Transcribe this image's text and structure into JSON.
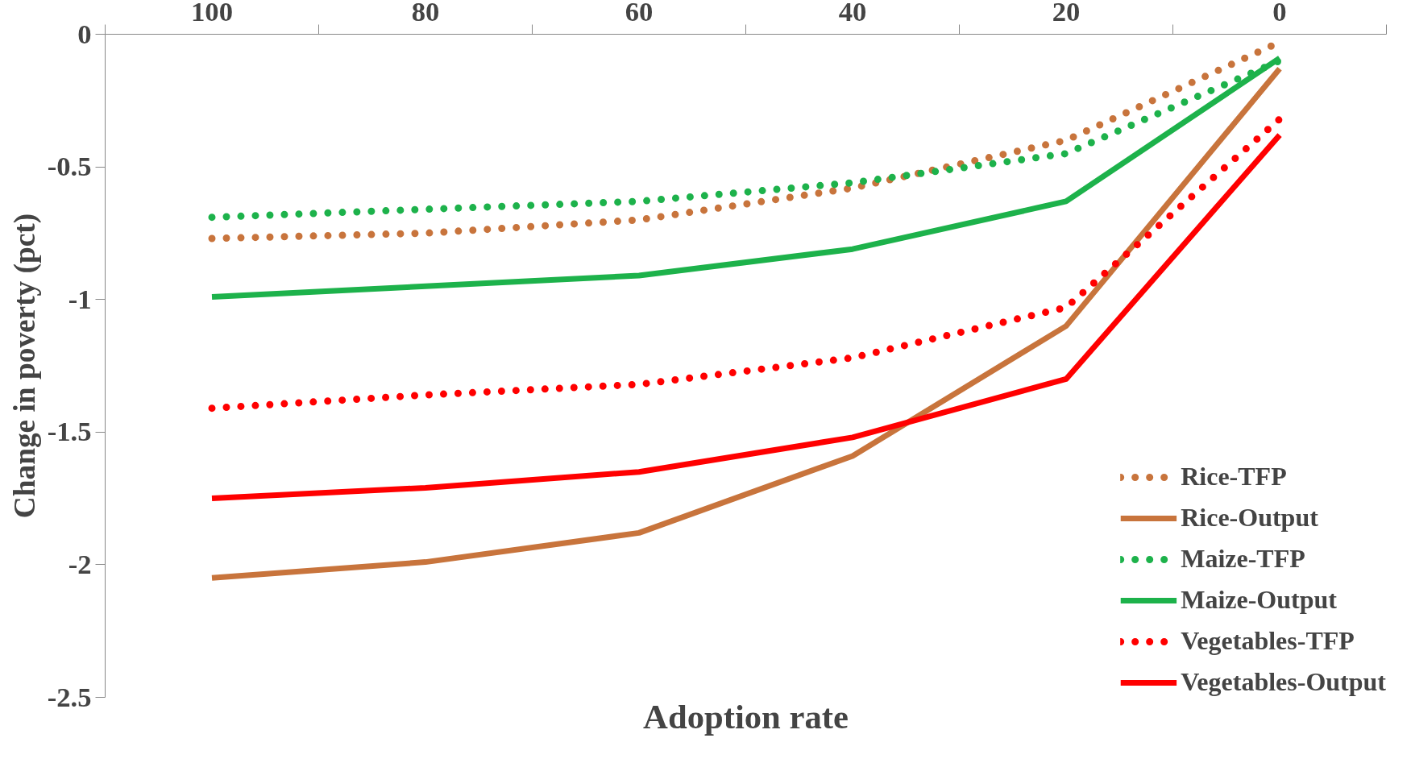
{
  "chart_data": {
    "type": "line",
    "xlabel": "Adoption rate",
    "ylabel": "Change in poverty (pct)",
    "categories": [
      "100",
      "80",
      "60",
      "40",
      "20",
      "0"
    ],
    "ylim": [
      -2.5,
      0
    ],
    "yticks": [
      0,
      -0.5,
      -1,
      -1.5,
      -2,
      -2.5
    ],
    "grid": false,
    "legend": "bottom right",
    "marker": "none",
    "series": [
      {
        "name": "Rice-TFP",
        "color": "#c8743c",
        "line_style": "dotted",
        "values": [
          -0.77,
          -0.75,
          -0.7,
          -0.58,
          -0.4,
          -0.03
        ]
      },
      {
        "name": "Rice-Output",
        "color": "#c8743c",
        "line_style": "solid",
        "values": [
          -2.05,
          -1.99,
          -1.88,
          -1.59,
          -1.1,
          -0.13
        ]
      },
      {
        "name": "Maize-TFP",
        "color": "#1db24b",
        "line_style": "dotted",
        "values": [
          -0.69,
          -0.66,
          -0.63,
          -0.56,
          -0.45,
          -0.1
        ]
      },
      {
        "name": "Maize-Output",
        "color": "#1db24b",
        "line_style": "solid",
        "values": [
          -0.99,
          -0.95,
          -0.91,
          -0.81,
          -0.63,
          -0.09
        ]
      },
      {
        "name": "Vegetables-TFP",
        "color": "#ff0000",
        "line_style": "dotted",
        "values": [
          -1.41,
          -1.36,
          -1.32,
          -1.22,
          -1.03,
          -0.32
        ]
      },
      {
        "name": "Vegetables-Output",
        "color": "#ff0000",
        "line_style": "solid",
        "values": [
          -1.75,
          -1.71,
          -1.65,
          -1.52,
          -1.3,
          -0.38
        ]
      }
    ]
  }
}
